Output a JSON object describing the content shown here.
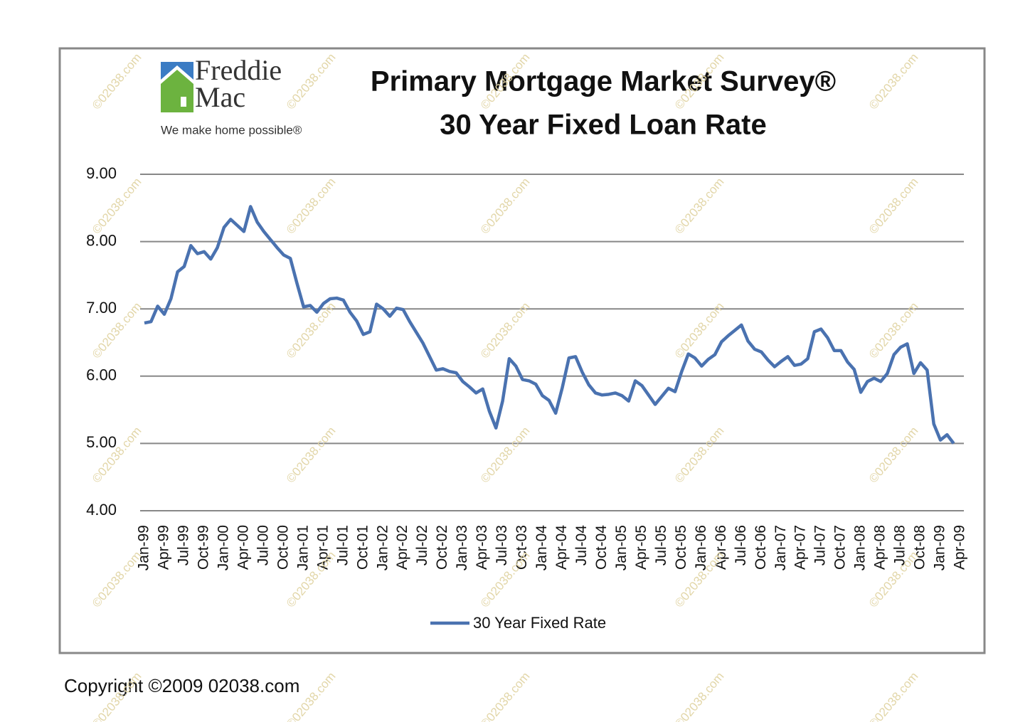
{
  "chart_data": {
    "type": "line",
    "title": "Primary Mortgage Market Survey®",
    "subtitle": "30 Year Fixed Loan Rate",
    "logo_name": "Freddie Mac",
    "logo_tagline": "We make home possible®",
    "copyright": "Copyright ©2009 02038.com",
    "watermark": "©02038.com",
    "categories": [
      "Jan-99",
      null,
      null,
      "Apr-99",
      null,
      null,
      "Jul-99",
      null,
      null,
      "Oct-99",
      null,
      null,
      "Jan-00",
      null,
      null,
      "Apr-00",
      null,
      null,
      "Jul-00",
      null,
      null,
      "Oct-00",
      null,
      null,
      "Jan-01",
      null,
      null,
      "Apr-01",
      null,
      null,
      "Jul-01",
      null,
      null,
      "Oct-01",
      null,
      null,
      "Jan-02",
      null,
      null,
      "Apr-02",
      null,
      null,
      "Jul-02",
      null,
      null,
      "Oct-02",
      null,
      null,
      "Jan-03",
      null,
      null,
      "Apr-03",
      null,
      null,
      "Jul-03",
      null,
      null,
      "Oct-03",
      null,
      null,
      "Jan-04",
      null,
      null,
      "Apr-04",
      null,
      null,
      "Jul-04",
      null,
      null,
      "Oct-04",
      null,
      null,
      "Jan-05",
      null,
      null,
      "Apr-05",
      null,
      null,
      "Jul-05",
      null,
      null,
      "Oct-05",
      null,
      null,
      "Jan-06",
      null,
      null,
      "Apr-06",
      null,
      null,
      "Jul-06",
      null,
      null,
      "Oct-06",
      null,
      null,
      "Jan-07",
      null,
      null,
      "Apr-07",
      null,
      null,
      "Jul-07",
      null,
      null,
      "Oct-07",
      null,
      null,
      "Jan-08",
      null,
      null,
      "Apr-08",
      null,
      null,
      "Jul-08",
      null,
      null,
      "Oct-08",
      null,
      null,
      "Jan-09",
      null,
      null,
      "Apr-09"
    ],
    "series": [
      {
        "name": "30 Year Fixed Rate",
        "color": "#4a72b0",
        "values": [
          6.79,
          6.81,
          7.04,
          6.92,
          7.15,
          7.55,
          7.63,
          7.94,
          7.82,
          7.85,
          7.74,
          7.91,
          8.21,
          8.33,
          8.24,
          8.15,
          8.52,
          8.29,
          8.15,
          8.03,
          7.91,
          7.8,
          7.75,
          7.38,
          7.03,
          7.05,
          6.95,
          7.08,
          7.15,
          7.16,
          7.13,
          6.95,
          6.82,
          6.62,
          6.66,
          7.07,
          7.0,
          6.89,
          7.01,
          6.99,
          6.81,
          6.65,
          6.49,
          6.29,
          6.09,
          6.11,
          6.07,
          6.05,
          5.92,
          5.84,
          5.75,
          5.81,
          5.48,
          5.23,
          5.63,
          6.26,
          6.15,
          5.95,
          5.93,
          5.88,
          5.71,
          5.64,
          5.45,
          5.83,
          6.27,
          6.29,
          6.06,
          5.87,
          5.75,
          5.72,
          5.73,
          5.75,
          5.71,
          5.63,
          5.93,
          5.86,
          5.72,
          5.58,
          5.7,
          5.82,
          5.77,
          6.07,
          6.33,
          6.27,
          6.15,
          6.25,
          6.32,
          6.51,
          6.6,
          6.68,
          6.76,
          6.52,
          6.4,
          6.36,
          6.24,
          6.14,
          6.22,
          6.29,
          6.16,
          6.18,
          6.26,
          6.66,
          6.7,
          6.57,
          6.38,
          6.38,
          6.21,
          6.1,
          5.76,
          5.92,
          5.97,
          5.92,
          6.04,
          6.32,
          6.43,
          6.48,
          6.04,
          6.2,
          6.09,
          5.29,
          5.05,
          5.13,
          5.0,
          null
        ]
      }
    ],
    "ylim": [
      4,
      9
    ],
    "yticks": [
      {
        "value": 4,
        "label": "4.00"
      },
      {
        "value": 5,
        "label": "5.00"
      },
      {
        "value": 6,
        "label": "6.00"
      },
      {
        "value": 7,
        "label": "7.00"
      },
      {
        "value": 8,
        "label": "8.00"
      },
      {
        "value": 9,
        "label": "9.00"
      }
    ],
    "grid": true
  }
}
